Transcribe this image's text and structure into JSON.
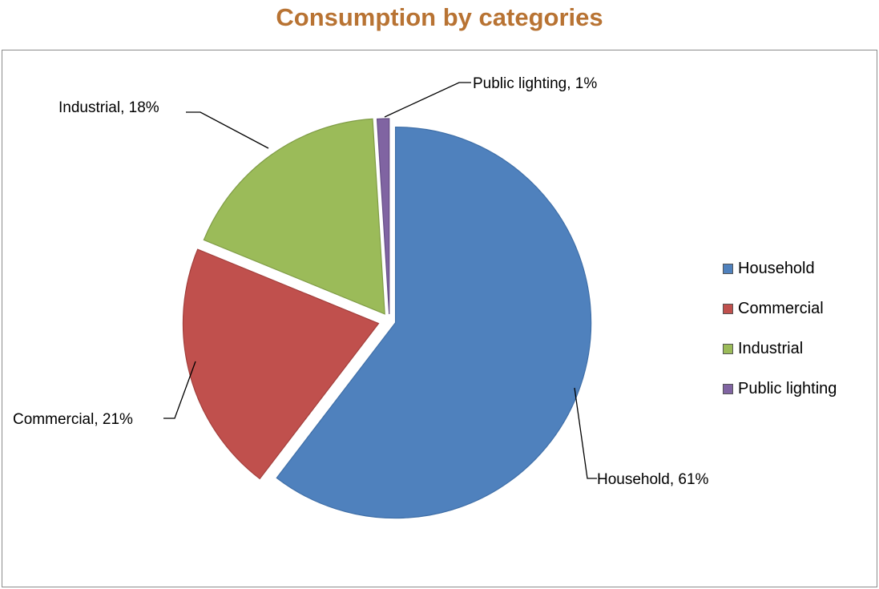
{
  "chart_data": {
    "type": "pie",
    "title": "Consumption by categories",
    "categories": [
      "Household",
      "Commercial",
      "Industrial",
      "Public lighting"
    ],
    "values": [
      61,
      21,
      18,
      1
    ],
    "unit": "%",
    "data_labels": [
      "Household, 61%",
      "Commercial, 21%",
      "Industrial, 18%",
      "Public lighting, 1%"
    ],
    "colors": [
      "#4f81bd",
      "#c0504d",
      "#9bbb59",
      "#8064a2"
    ],
    "exploded": true,
    "legend_position": "right"
  }
}
